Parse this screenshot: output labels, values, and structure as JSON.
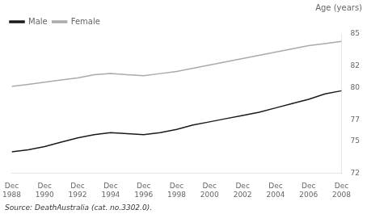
{
  "chart_data": {
    "type": "line",
    "ylabel": "Age (years)",
    "annotations": [
      "Source: DeathAustralia (cat. no.3302.0)."
    ],
    "x": [
      1988,
      1989,
      1990,
      1991,
      1992,
      1993,
      1994,
      1995,
      1996,
      1997,
      1998,
      1999,
      2000,
      2001,
      2002,
      2003,
      2004,
      2005,
      2006,
      2007,
      2008
    ],
    "series": [
      {
        "name": "Male",
        "color": "#1a1a1a",
        "values": [
          74.0,
          74.2,
          74.5,
          74.9,
          75.3,
          75.6,
          75.8,
          75.7,
          75.6,
          75.8,
          76.1,
          76.5,
          76.8,
          77.1,
          77.4,
          77.7,
          78.1,
          78.5,
          78.9,
          79.4,
          79.7
        ]
      },
      {
        "name": "Female",
        "color": "#aaaaaa",
        "values": [
          80.1,
          80.3,
          80.5,
          80.7,
          80.9,
          81.2,
          81.3,
          81.2,
          81.1,
          81.3,
          81.5,
          81.8,
          82.1,
          82.4,
          82.7,
          83.0,
          83.3,
          83.6,
          83.9,
          84.1,
          84.3
        ]
      }
    ],
    "xlim": [
      1988,
      2008
    ],
    "xticks": [
      {
        "value": 1988,
        "label": "Dec\n1988"
      },
      {
        "value": 1990,
        "label": "Dec\n1990"
      },
      {
        "value": 1992,
        "label": "Dec\n1992"
      },
      {
        "value": 1994,
        "label": "Dec\n1994"
      },
      {
        "value": 1996,
        "label": "Dec\n1996"
      },
      {
        "value": 1998,
        "label": "Dec\n1998"
      },
      {
        "value": 2000,
        "label": "Dec\n2000"
      },
      {
        "value": 2002,
        "label": "Dec\n2002"
      },
      {
        "value": 2004,
        "label": "Dec\n2004"
      },
      {
        "value": 2006,
        "label": "Dec\n2006"
      },
      {
        "value": 2008,
        "label": "Dec\n2008"
      }
    ],
    "ylim": [
      72,
      85
    ],
    "yticks": [
      72,
      75,
      77,
      80,
      82,
      85
    ],
    "grid": false,
    "legend": "upper left"
  }
}
